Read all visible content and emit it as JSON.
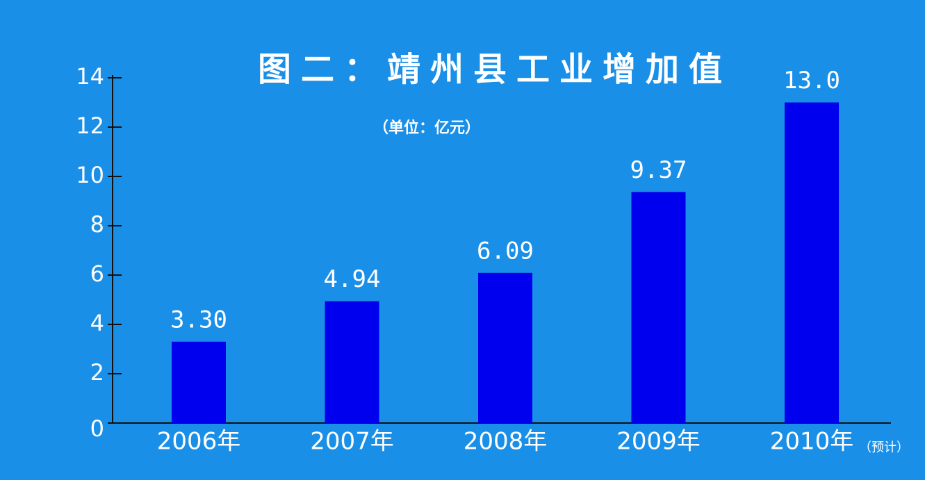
{
  "chart_data": {
    "type": "bar",
    "title": "图二：靖州县工业增加值",
    "subtitle": "（单位：亿元）",
    "categories": [
      "2006年",
      "2007年",
      "2008年",
      "2009年",
      "2010年"
    ],
    "annotation": "（预计）",
    "values": [
      3.3,
      4.94,
      6.09,
      9.37,
      13.0
    ],
    "value_labels": [
      "3.30",
      "4.94",
      "6.09",
      "9.37",
      "13.0"
    ],
    "color": "#0000ee",
    "ylim": [
      0,
      14
    ],
    "yticks": [
      0,
      2,
      4,
      6,
      8,
      10,
      12,
      14
    ],
    "grid": false
  }
}
